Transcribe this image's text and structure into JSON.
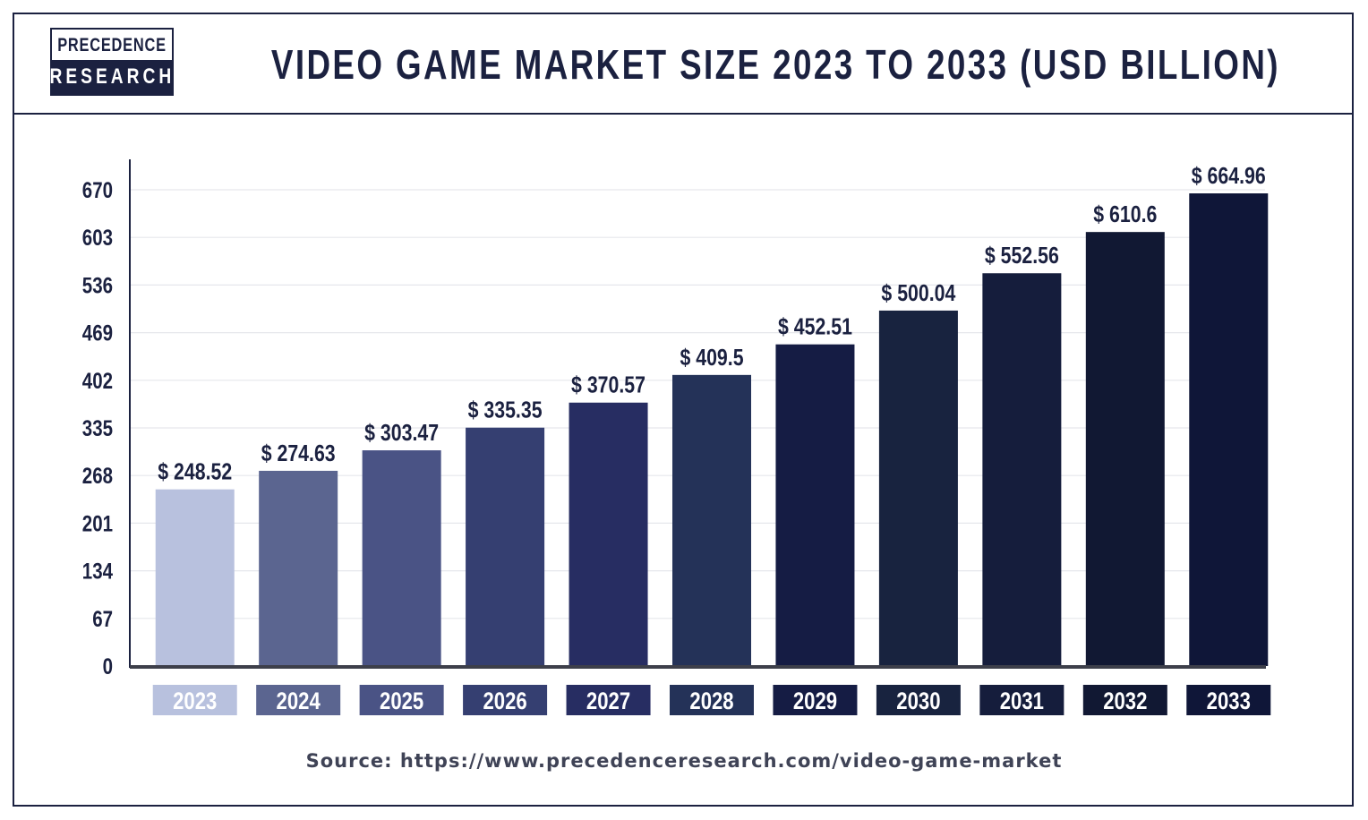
{
  "logo": {
    "top_text": "PRECEDENCE",
    "bottom_text": "RESEARCH"
  },
  "source": "Source: https://www.precedenceresearch.com/video-game-market",
  "chart_data": {
    "type": "bar",
    "title": "VIDEO GAME MARKET SIZE 2023 TO 2033 (USD BILLION)",
    "categories": [
      "2023",
      "2024",
      "2025",
      "2026",
      "2027",
      "2028",
      "2029",
      "2030",
      "2031",
      "2032",
      "2033"
    ],
    "values": [
      248.52,
      274.63,
      303.47,
      335.35,
      370.57,
      409.5,
      452.51,
      500.04,
      552.56,
      610.6,
      664.96
    ],
    "data_labels": [
      "$ 248.52",
      "$ 274.63",
      "$ 303.47",
      "$ 335.35",
      "$ 370.57",
      "$ 409.5",
      "$ 452.51",
      "$ 500.04",
      "$ 552.56",
      "$ 610.6",
      "$ 664.96"
    ],
    "yticks": [
      0,
      67,
      134,
      201,
      268,
      335,
      402,
      469,
      536,
      603,
      670
    ],
    "ylim": [
      0,
      670
    ],
    "grid": true,
    "colors": [
      "#b8c1de",
      "#5b6590",
      "#4a5385",
      "#353f71",
      "#272d62",
      "#243258",
      "#151c44",
      "#18233f",
      "#151d3c",
      "#111833",
      "#0f1638"
    ],
    "xlabel": "",
    "ylabel": ""
  }
}
